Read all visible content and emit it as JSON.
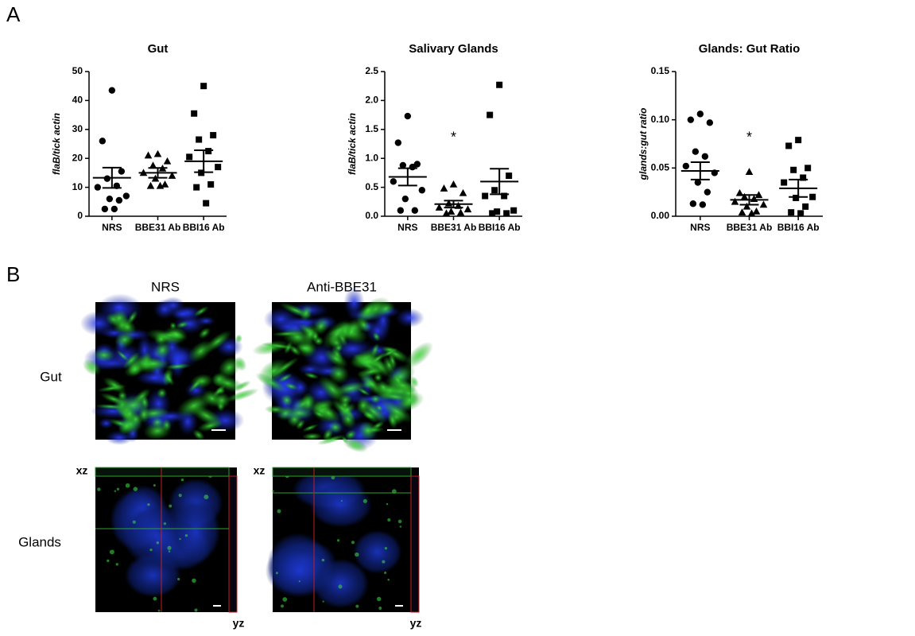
{
  "panel_labels": [
    "A",
    "B"
  ],
  "chart_data": [
    {
      "type": "dot",
      "title": "Gut",
      "y_label": "flaB/tick actin",
      "categories": [
        "NRS",
        "BBE31 Ab",
        "BBI16 Ab"
      ],
      "markers": [
        "circle",
        "triangle",
        "square"
      ],
      "color": "#000000",
      "values": [
        [
          43.5,
          26,
          15.5,
          13,
          10.5,
          10,
          7,
          6,
          5.5,
          2.5,
          2.5
        ],
        [
          21.5,
          21,
          19,
          17.5,
          16.5,
          15,
          14,
          13,
          11,
          10.5,
          10.5
        ],
        [
          45,
          35.5,
          28,
          26.5,
          22.5,
          20.5,
          17,
          15,
          11,
          10,
          4.5
        ]
      ],
      "mean": [
        13.3,
        15,
        19
      ],
      "sem": [
        3.5,
        1.7,
        3.8
      ],
      "ylim": [
        0,
        50
      ],
      "yticks": [
        0,
        10,
        20,
        30,
        40,
        50
      ]
    },
    {
      "type": "dot",
      "title": "Salivary Glands",
      "y_label": "flaB/tick actin",
      "categories": [
        "NRS",
        "BBE31 Ab",
        "BBI16 Ab"
      ],
      "markers": [
        "circle",
        "triangle",
        "square"
      ],
      "color": "#000000",
      "values": [
        [
          1.73,
          1.27,
          0.9,
          0.88,
          0.85,
          0.6,
          0.45,
          0.3,
          0.1,
          0.1
        ],
        [
          0.55,
          0.48,
          0.4,
          0.22,
          0.18,
          0.15,
          0.12,
          0.08,
          0.06,
          0.05
        ],
        [
          2.27,
          1.75,
          0.7,
          0.45,
          0.35,
          0.35,
          0.1,
          0.08,
          0.05,
          0.05
        ]
      ],
      "mean": [
        0.68,
        0.21,
        0.6
      ],
      "sem": [
        0.15,
        0.06,
        0.22
      ],
      "annotation": {
        "text": "*",
        "category": "BBE31 Ab"
      },
      "ylim": [
        0,
        2.5
      ],
      "yticks": [
        {
          "value": 0,
          "label": "0.0"
        },
        0.5,
        {
          "value": 1,
          "label": "1.0"
        },
        1.5,
        {
          "value": 2,
          "label": "2.0"
        },
        2.5
      ]
    },
    {
      "type": "dot",
      "title": "Glands: Gut Ratio",
      "y_label": "glands:gut ratio",
      "categories": [
        "NRS",
        "BBE31 Ab",
        "BBI16 Ab"
      ],
      "markers": [
        "circle",
        "triangle",
        "square"
      ],
      "color": "#000000",
      "values": [
        [
          0.106,
          0.1,
          0.097,
          0.067,
          0.062,
          0.052,
          0.045,
          0.035,
          0.025,
          0.013,
          0.012
        ],
        [
          0.046,
          0.024,
          0.022,
          0.02,
          0.018,
          0.015,
          0.012,
          0.01,
          0.005,
          0.004,
          0.003
        ],
        [
          0.079,
          0.073,
          0.05,
          0.048,
          0.04,
          0.035,
          0.02,
          0.019,
          0.01,
          0.004,
          0.003
        ]
      ],
      "mean": [
        0.047,
        0.017,
        0.029
      ],
      "sem": [
        0.009,
        0.005,
        0.009
      ],
      "annotation": {
        "text": "*",
        "category": "BBE31 Ab"
      },
      "ylim": [
        0,
        0.15
      ],
      "yticks": [
        {
          "value": 0,
          "label": "0.00"
        },
        0.05,
        {
          "value": 0.1,
          "label": "0.10"
        },
        0.15
      ]
    }
  ],
  "panel_b": {
    "columns": [
      "NRS",
      "Anti-BBE31"
    ],
    "rows": [
      "Gut",
      "Glands"
    ],
    "xz": "xz",
    "yz": "yz"
  }
}
